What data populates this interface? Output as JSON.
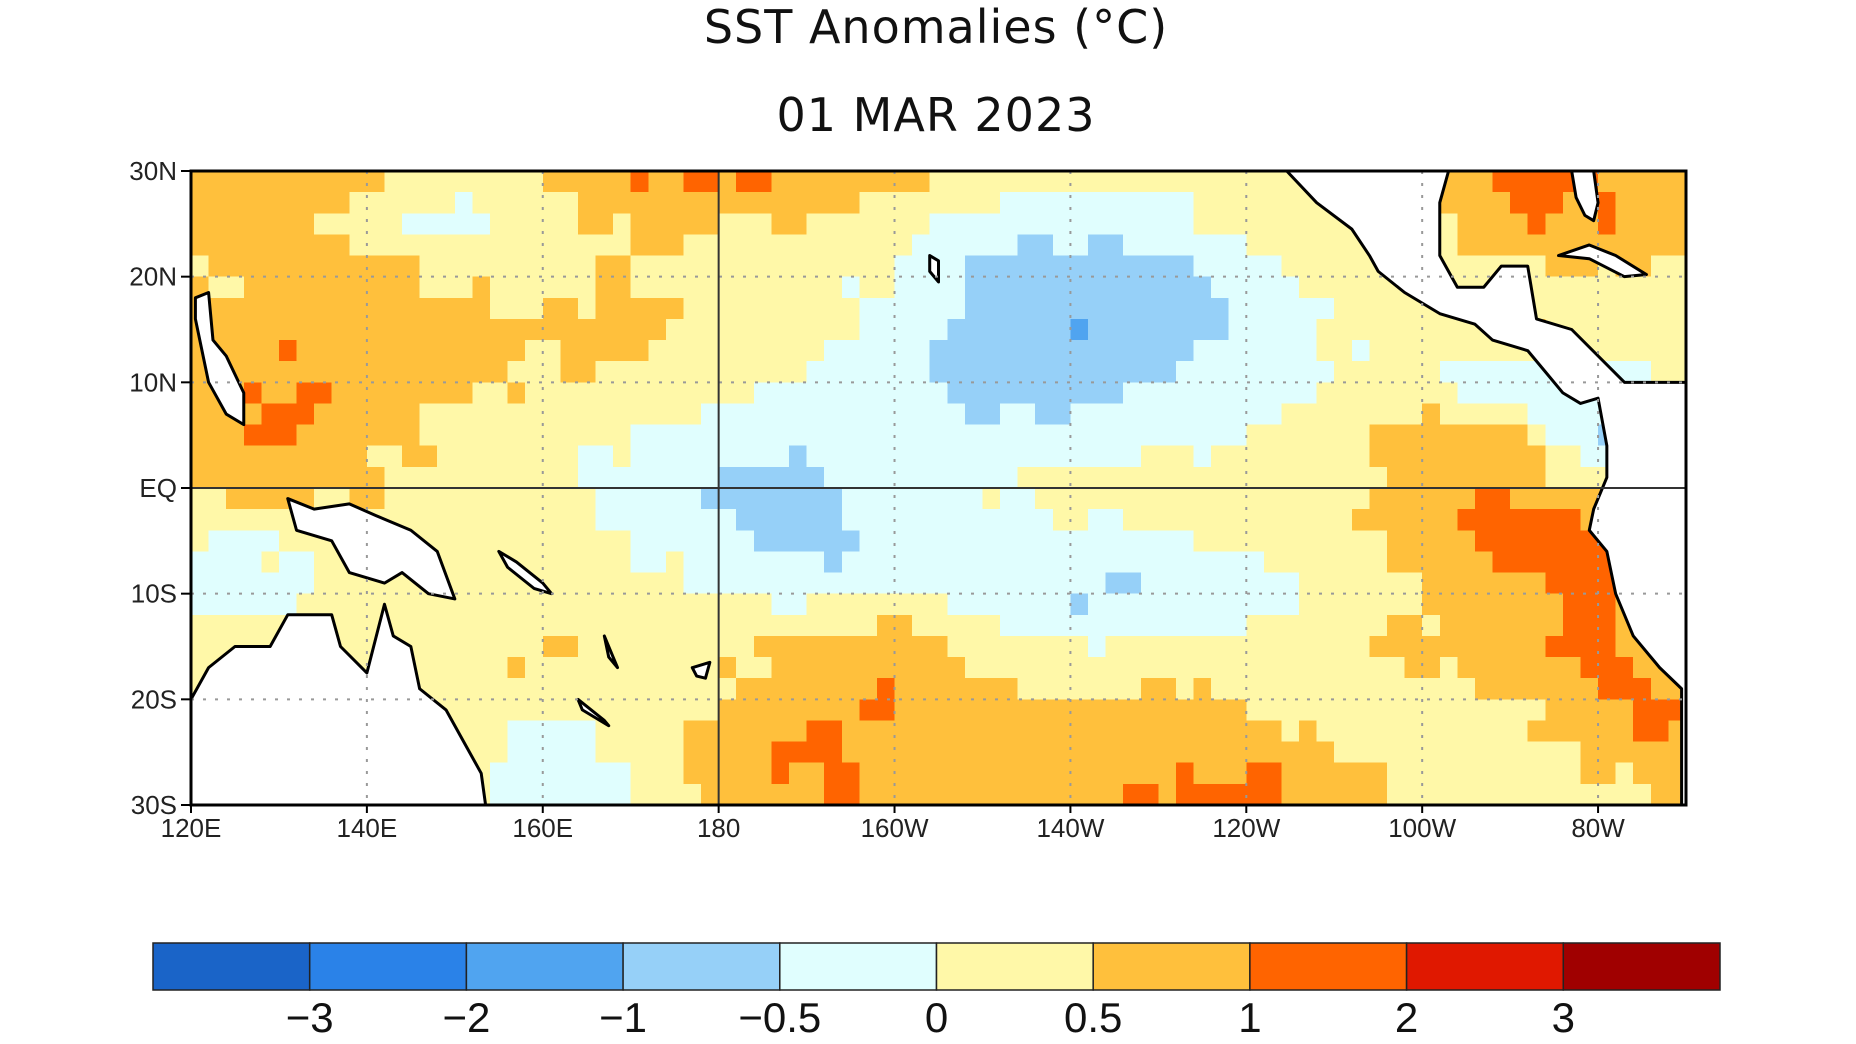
{
  "chart_data": {
    "type": "heatmap",
    "title": "SST Anomalies (°C)",
    "subtitle": "01 MAR 2023",
    "x_ticks": [
      "120E",
      "140E",
      "160E",
      "180",
      "160W",
      "140W",
      "120W",
      "100W",
      "80W"
    ],
    "x_tick_lons": [
      120,
      140,
      160,
      180,
      200,
      220,
      240,
      260,
      280
    ],
    "y_ticks": [
      "30N",
      "20N",
      "10N",
      "EQ",
      "10S",
      "20S",
      "30S"
    ],
    "y_tick_lats": [
      30,
      20,
      10,
      0,
      -10,
      -20,
      -30
    ],
    "xlim_lon_east": [
      120,
      290
    ],
    "ylim_lat": [
      -30,
      30
    ],
    "grid": "dotted every 20° lon and 10° lat, solid at 180 and equator",
    "grid_lons_east": [
      120,
      130,
      140,
      150,
      160,
      170,
      180,
      190,
      200,
      210,
      220,
      230,
      240,
      250,
      260,
      270,
      280,
      290
    ],
    "grid_lats": [
      30,
      25,
      20,
      15,
      10,
      5,
      0,
      -5,
      -10,
      -15,
      -20,
      -25,
      -30
    ],
    "values": [
      [
        0.5,
        1,
        0.7,
        0.3,
        0.5,
        1,
        1.2,
        1,
        0.8,
        0.5,
        0.3,
        0.2,
        0.3,
        null,
        null,
        1.2,
        1,
        0.8
      ],
      [
        0.8,
        0.6,
        0.3,
        -0.2,
        0.3,
        0.6,
        0.5,
        0.4,
        0.3,
        -0.3,
        -0.4,
        -0.3,
        0.2,
        0.3,
        null,
        1,
        1,
        0.6
      ],
      [
        0.3,
        0.8,
        0.7,
        0.4,
        0.3,
        0.5,
        0.3,
        0.2,
        0,
        -0.6,
        -0.8,
        -0.7,
        -0.3,
        0.2,
        0.3,
        null,
        0.5,
        0.3
      ],
      [
        0.7,
        0.8,
        0.8,
        0.7,
        0.6,
        0.7,
        0.3,
        0.2,
        -0.2,
        -0.7,
        -0.9,
        -0.8,
        -0.4,
        0,
        0.3,
        0.5,
        null,
        0.2
      ],
      [
        0.6,
        1.1,
        0.8,
        0.6,
        0.4,
        0.4,
        0.2,
        0,
        -0.3,
        -0.8,
        -0.7,
        -0.5,
        -0.2,
        0,
        0.2,
        -0.6,
        -0.3,
        null
      ],
      [
        0.7,
        1.1,
        0.7,
        0.4,
        0.3,
        0,
        -0.3,
        -0.2,
        -0.2,
        -0.3,
        -0.3,
        -0.2,
        0,
        0.3,
        0.6,
        0.8,
        -0.7,
        null
      ],
      [
        0.5,
        0.7,
        0.5,
        0.3,
        0.2,
        -0.3,
        -0.6,
        -0.7,
        -0.3,
        -0.1,
        0.2,
        0.3,
        0.3,
        0.4,
        0.7,
        1,
        0.3,
        null
      ],
      [
        0,
        0,
        null,
        0.4,
        0.3,
        0,
        -0.4,
        -0.7,
        -0.4,
        -0.2,
        -0.1,
        -0.1,
        0.1,
        0.3,
        0.8,
        1.2,
        1.5,
        null
      ],
      [
        -0.4,
        -0.2,
        null,
        0.3,
        0.4,
        0.2,
        0,
        -0.2,
        0,
        -0.2,
        -0.6,
        -0.5,
        -0.3,
        0.2,
        0.4,
        0.8,
        1.2,
        null
      ],
      [
        0.3,
        null,
        null,
        0.4,
        0.5,
        0.3,
        0.3,
        0.7,
        0.9,
        0.3,
        0.1,
        0,
        0.2,
        0.4,
        0.6,
        0.7,
        1.3,
        null
      ],
      [
        null,
        null,
        null,
        0.2,
        0.3,
        0.3,
        0.5,
        0.8,
        1,
        0.6,
        0.4,
        0.7,
        0.4,
        0.3,
        0.2,
        0.5,
        1,
        1.2
      ],
      [
        null,
        null,
        null,
        0.3,
        -0.4,
        0.2,
        0.7,
        1.1,
        0.9,
        0.7,
        0.8,
        0.9,
        0.9,
        0.4,
        0.2,
        0.3,
        0.6,
        1
      ],
      [
        null,
        null,
        null,
        0.4,
        -0.5,
        -0.2,
        0.7,
        1,
        0.8,
        0.5,
        0.9,
        1,
        1.3,
        1,
        0.4,
        0.2,
        0.3,
        0.5
      ]
    ],
    "colorbar": {
      "labels": [
        "−3",
        "−2",
        "−1",
        "−0.5",
        "0",
        "0.5",
        "1",
        "2",
        "3"
      ],
      "thresholds": [
        -3,
        -2,
        -1,
        -0.5,
        0,
        0.5,
        1,
        2,
        3
      ],
      "colors": [
        "#1a64c8",
        "#2a82e8",
        "#50a4f0",
        "#96d0f8",
        "#e0fefe",
        "#fff8a8",
        "#ffc03c",
        "#ff6400",
        "#e01800",
        "#a00000"
      ]
    },
    "land_color": "#ffffff",
    "coast_color": "#000000"
  }
}
